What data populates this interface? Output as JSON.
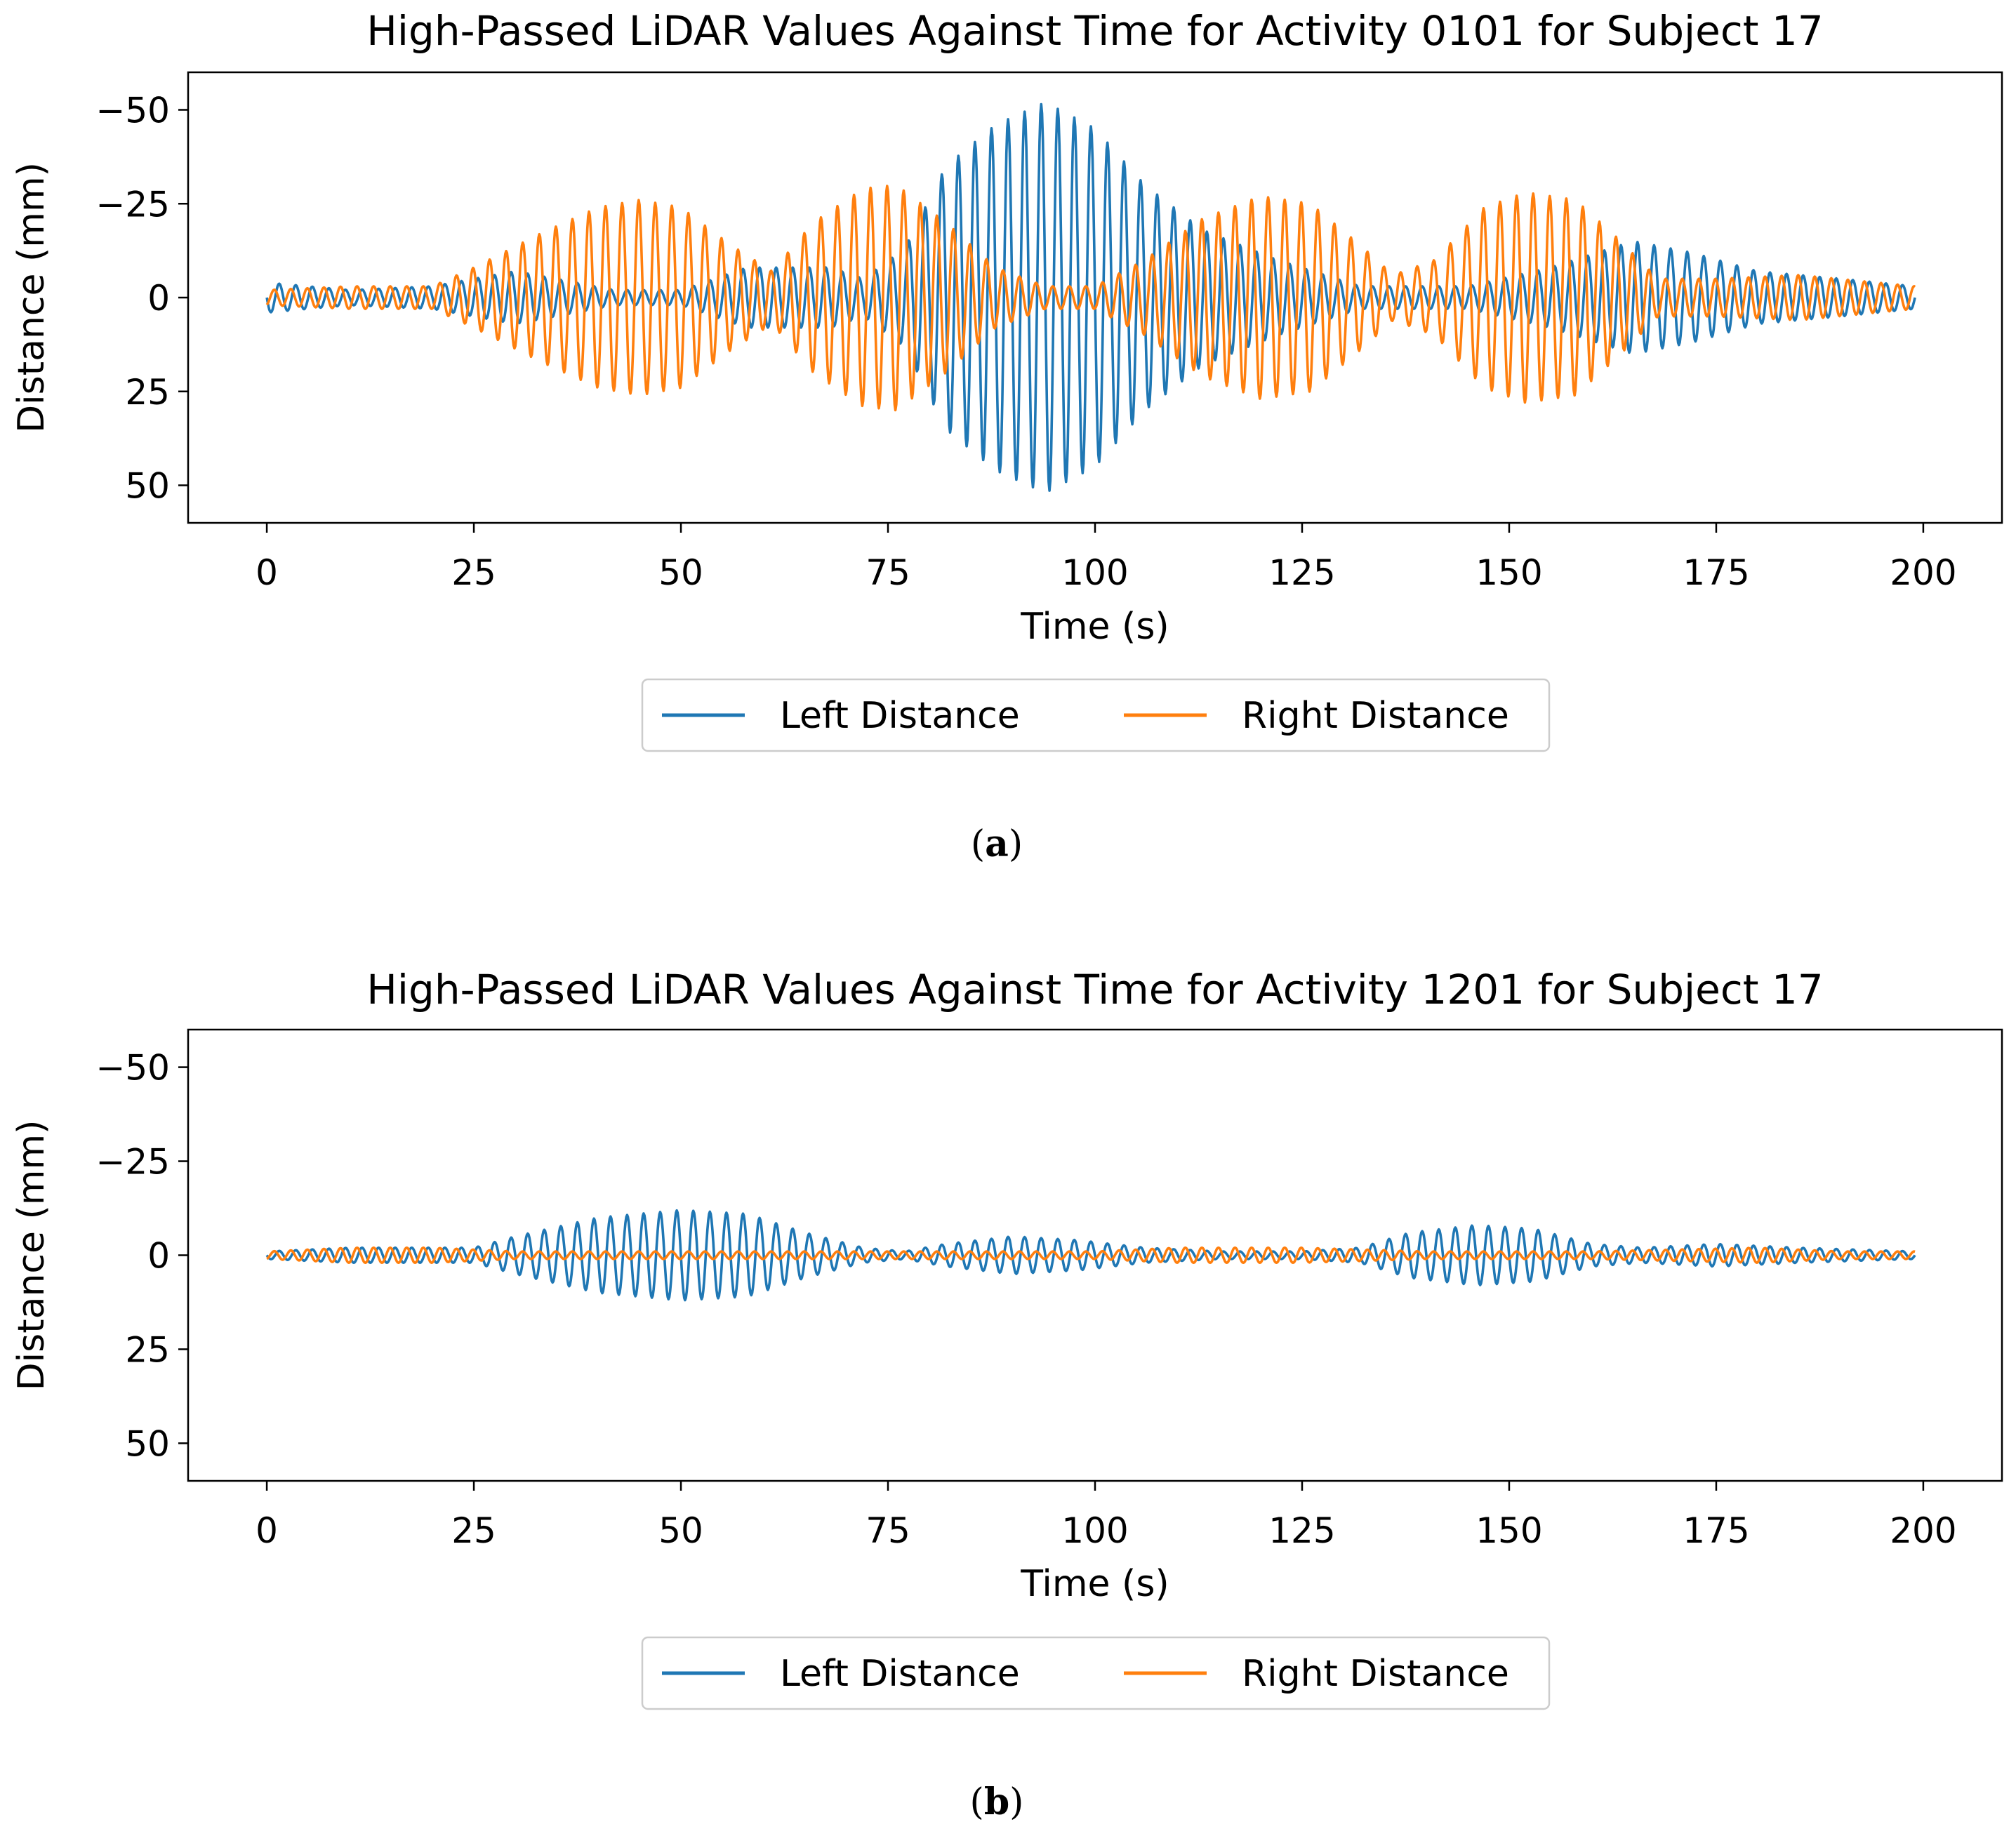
{
  "figure": {
    "panels": [
      {
        "label_open": "(",
        "label_letter": "a",
        "label_close": ")"
      },
      {
        "label_open": "(",
        "label_letter": "b",
        "label_close": ")"
      }
    ]
  },
  "colors": {
    "left": "#1f77b4",
    "right": "#ff7f0e",
    "axes": "#000000",
    "legend_border": "#cccccc"
  },
  "chart_data": [
    {
      "type": "line",
      "title": "High-Passed LiDAR Values Against Time for Activity 0101 for Subject 17",
      "xlabel": "Time (s)",
      "ylabel": "Distance (mm)",
      "xlim": [
        -9.5,
        209.5
      ],
      "ylim": [
        60,
        -60
      ],
      "y_inverted": true,
      "xticks": [
        0,
        25,
        50,
        75,
        100,
        125,
        150,
        175,
        200
      ],
      "xtick_labels": [
        "0",
        "25",
        "50",
        "75",
        "100",
        "125",
        "150",
        "175",
        "200"
      ],
      "yticks": [
        -50,
        -25,
        0,
        25,
        50
      ],
      "ytick_labels": [
        "−50",
        "−25",
        "0",
        "25",
        "50"
      ],
      "grid": false,
      "legend": {
        "placement": "below",
        "ncol": 2
      },
      "oscillation_period_s": 2,
      "series": [
        {
          "name": "Left Distance",
          "color": "#1f77b4",
          "envelope": [
            [
              0,
              4
            ],
            [
              10,
              2
            ],
            [
              20,
              3
            ],
            [
              30,
              7
            ],
            [
              42,
              2
            ],
            [
              50,
              2
            ],
            [
              58,
              8
            ],
            [
              68,
              8
            ],
            [
              72,
              5
            ],
            [
              77,
              13
            ],
            [
              82,
              35
            ],
            [
              88,
              46
            ],
            [
              94,
              52
            ],
            [
              100,
              45
            ],
            [
              106,
              30
            ],
            [
              113,
              18
            ],
            [
              122,
              10
            ],
            [
              132,
              3
            ],
            [
              145,
              3
            ],
            [
              155,
              8
            ],
            [
              165,
              15
            ],
            [
              172,
              12
            ],
            [
              180,
              7
            ],
            [
              190,
              5
            ],
            [
              199,
              3
            ]
          ]
        },
        {
          "name": "Right Distance",
          "color": "#ff7f0e",
          "envelope": [
            [
              0,
              2
            ],
            [
              10,
              3
            ],
            [
              20,
              3
            ],
            [
              25,
              8
            ],
            [
              33,
              17
            ],
            [
              40,
              24
            ],
            [
              45,
              26
            ],
            [
              50,
              24
            ],
            [
              56,
              14
            ],
            [
              61,
              7
            ],
            [
              66,
              20
            ],
            [
              72,
              29
            ],
            [
              76,
              30
            ],
            [
              82,
              20
            ],
            [
              88,
              8
            ],
            [
              94,
              3
            ],
            [
              100,
              3
            ],
            [
              106,
              10
            ],
            [
              113,
              21
            ],
            [
              120,
              27
            ],
            [
              126,
              25
            ],
            [
              132,
              14
            ],
            [
              136,
              6
            ],
            [
              141,
              10
            ],
            [
              147,
              24
            ],
            [
              152,
              28
            ],
            [
              158,
              26
            ],
            [
              163,
              16
            ],
            [
              168,
              5
            ],
            [
              175,
              5
            ],
            [
              185,
              6
            ],
            [
              199,
              3
            ]
          ]
        }
      ]
    },
    {
      "type": "line",
      "title": "High-Passed LiDAR Values Against Time for Activity 1201 for Subject 17",
      "xlabel": "Time (s)",
      "ylabel": "Distance (mm)",
      "xlim": [
        -9.5,
        209.5
      ],
      "ylim": [
        60,
        -60
      ],
      "y_inverted": true,
      "xticks": [
        0,
        25,
        50,
        75,
        100,
        125,
        150,
        175,
        200
      ],
      "xtick_labels": [
        "0",
        "25",
        "50",
        "75",
        "100",
        "125",
        "150",
        "175",
        "200"
      ],
      "yticks": [
        -50,
        -25,
        0,
        25,
        50
      ],
      "ytick_labels": [
        "−50",
        "−25",
        "0",
        "25",
        "50"
      ],
      "grid": false,
      "legend": {
        "placement": "below",
        "ncol": 2
      },
      "oscillation_period_s": 2,
      "series": [
        {
          "name": "Left Distance",
          "color": "#1f77b4",
          "envelope": [
            [
              0,
              1
            ],
            [
              10,
              2
            ],
            [
              20,
              2
            ],
            [
              25,
              2
            ],
            [
              30,
              5
            ],
            [
              40,
              10
            ],
            [
              50,
              12
            ],
            [
              58,
              11
            ],
            [
              65,
              6
            ],
            [
              72,
              2
            ],
            [
              77,
              1
            ],
            [
              82,
              3
            ],
            [
              90,
              5
            ],
            [
              98,
              4
            ],
            [
              106,
              2
            ],
            [
              115,
              1
            ],
            [
              125,
              1
            ],
            [
              132,
              2
            ],
            [
              138,
              6
            ],
            [
              146,
              8
            ],
            [
              153,
              7
            ],
            [
              160,
              3
            ],
            [
              166,
              2
            ],
            [
              175,
              3
            ],
            [
              185,
              2
            ],
            [
              199,
              1
            ]
          ]
        },
        {
          "name": "Right Distance",
          "color": "#ff7f0e",
          "envelope": [
            [
              0,
              1
            ],
            [
              10,
              2
            ],
            [
              20,
              2
            ],
            [
              30,
              1
            ],
            [
              60,
              1
            ],
            [
              80,
              1
            ],
            [
              100,
              1
            ],
            [
              110,
              2
            ],
            [
              125,
              2
            ],
            [
              140,
              1
            ],
            [
              160,
              1
            ],
            [
              180,
              2
            ],
            [
              190,
              1
            ],
            [
              199,
              1
            ]
          ]
        }
      ]
    }
  ]
}
